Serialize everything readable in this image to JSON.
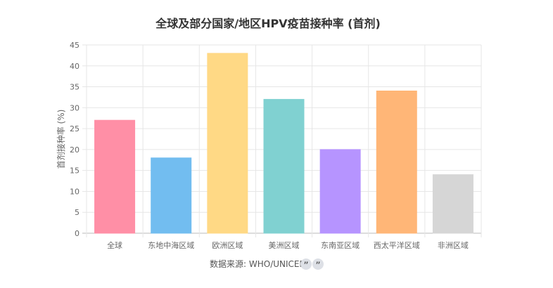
{
  "chart_data": {
    "type": "bar",
    "title": "全球及部分国家/地区HPV疫苗接种率 (首剂)",
    "ylabel": "首剂接种率 (%)",
    "xlabel": "",
    "categories": [
      "全球",
      "东地中海区域",
      "欧洲区域",
      "美洲区域",
      "东南亚区域",
      "西太平洋区域",
      "非洲区域"
    ],
    "values": [
      27,
      18,
      43,
      32,
      20,
      34,
      14
    ],
    "ylim": [
      0,
      45
    ],
    "yticks": [
      0,
      5,
      10,
      15,
      20,
      25,
      30,
      35,
      40,
      45
    ],
    "grid": true,
    "legend": "none",
    "colors": [
      "#ff8fa6",
      "#72bdf0",
      "#ffd985",
      "#80d1d1",
      "#b694ff",
      "#ffb677",
      "#d6d6d6"
    ]
  },
  "footer": {
    "source_label": "数据来源: WHO/UNICEF",
    "quote_icons": [
      "quote-icon",
      "quote-icon"
    ],
    "quote_glyph": "”"
  }
}
